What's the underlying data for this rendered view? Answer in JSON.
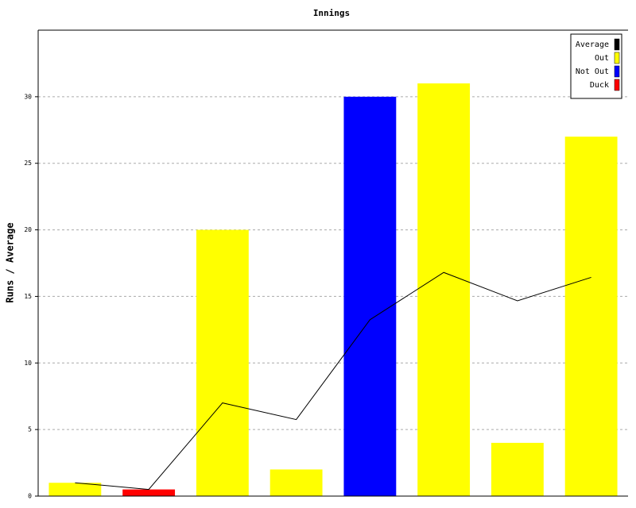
{
  "chart_data": {
    "type": "bar",
    "title": "Innings",
    "y_label": "Runs / Average",
    "categories": [
      null,
      null,
      null,
      null,
      null,
      null,
      null,
      null
    ],
    "series": [
      {
        "name": "Average",
        "color": "#000000",
        "kind": "line",
        "values": [
          1,
          0.5,
          7,
          5.75,
          13.25,
          16.8,
          14.67,
          16.43
        ]
      },
      {
        "name": "Out",
        "color": "#ffff00",
        "kind": "bar",
        "values": [
          1,
          null,
          20,
          2,
          null,
          31,
          4,
          27
        ]
      },
      {
        "name": "Not Out",
        "color": "#0000ff",
        "kind": "bar",
        "values": [
          null,
          null,
          null,
          null,
          30,
          null,
          null,
          null
        ]
      },
      {
        "name": "Duck",
        "color": "#ff0000",
        "kind": "bar",
        "values": [
          null,
          0.5,
          null,
          null,
          null,
          null,
          null,
          null
        ]
      }
    ],
    "ylim": [
      0,
      35
    ],
    "yticks": [
      0,
      5,
      10,
      15,
      20,
      25,
      30
    ],
    "grid": true,
    "legend": "top-right"
  }
}
